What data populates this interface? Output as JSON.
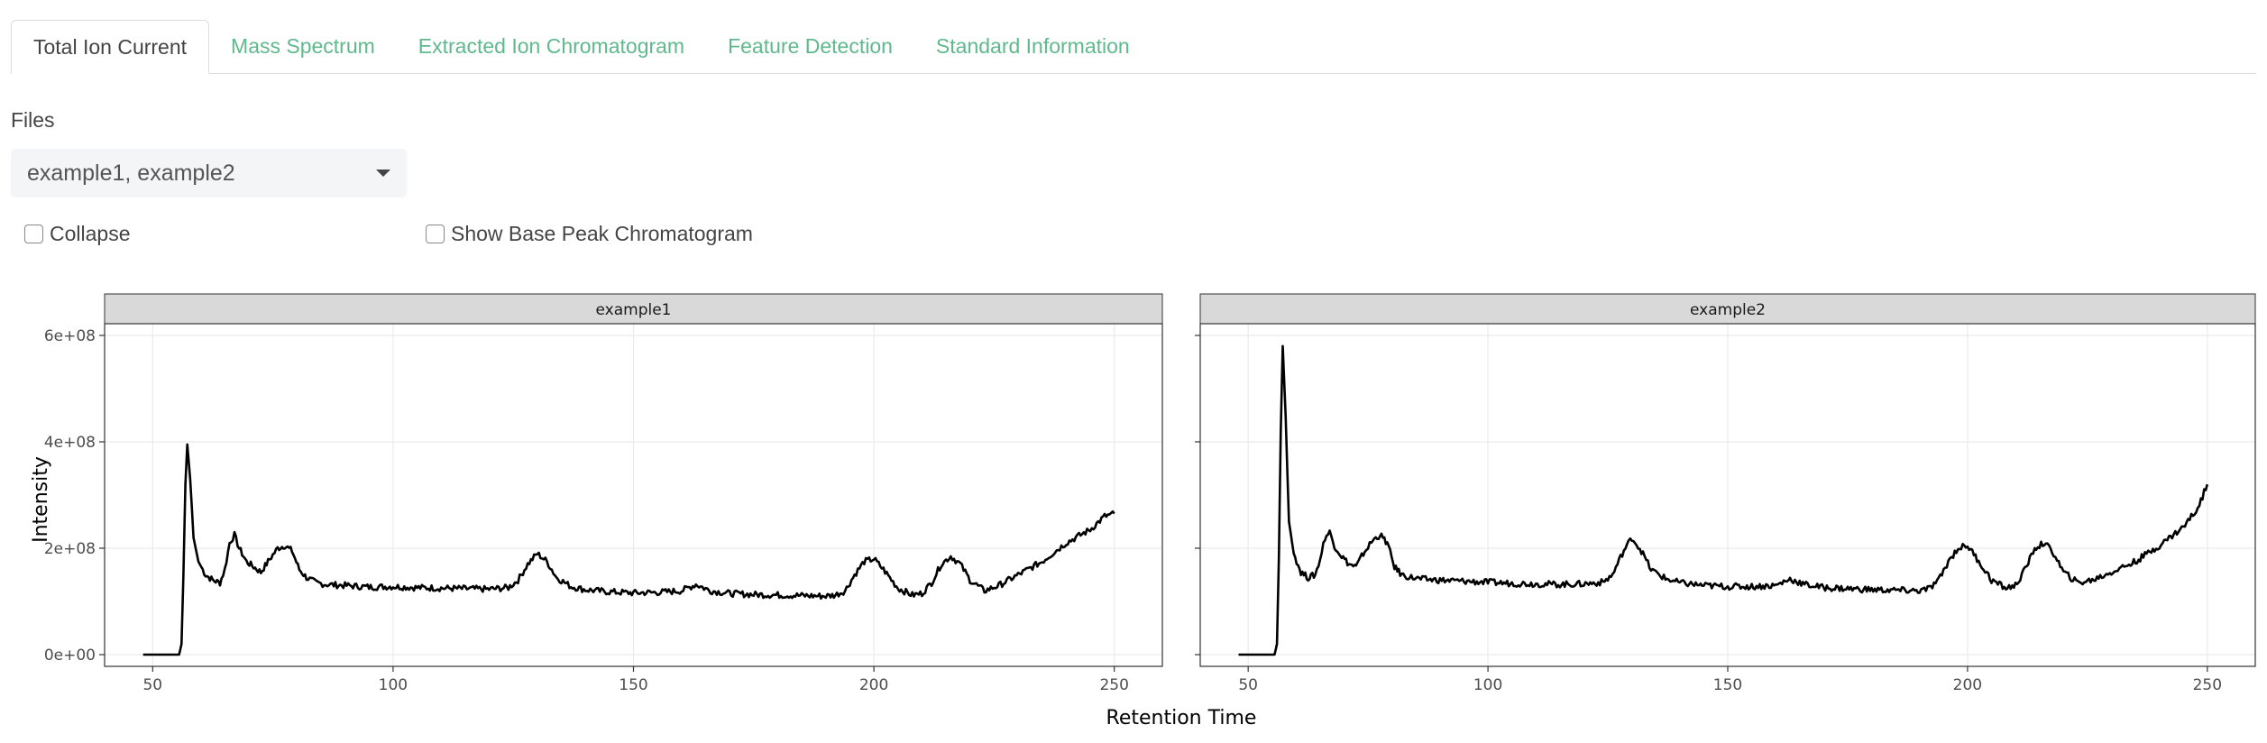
{
  "tabs": [
    {
      "label": "Total Ion Current",
      "active": true
    },
    {
      "label": "Mass Spectrum",
      "active": false
    },
    {
      "label": "Extracted Ion Chromatogram",
      "active": false
    },
    {
      "label": "Feature Detection",
      "active": false
    },
    {
      "label": "Standard Information",
      "active": false
    }
  ],
  "files": {
    "label": "Files",
    "value": "example1, example2"
  },
  "options": {
    "collapse": "Collapse",
    "show_bpc": "Show Base Peak Chromatogram"
  },
  "colors": {
    "accent": "#5fb98d",
    "strip_fill": "#d9d9d9",
    "line": "#000000",
    "grid": "#ebebeb"
  },
  "chart_data": {
    "type": "line",
    "facet": "files",
    "xlabel": "Retention Time",
    "ylabel": "Intensity",
    "xlim": [
      40,
      260
    ],
    "ylim": [
      0,
      600000000
    ],
    "x_ticks": [
      50,
      100,
      150,
      200,
      250
    ],
    "y_ticks": [
      0,
      200000000,
      400000000,
      600000000
    ],
    "y_tick_labels": [
      "0e+00",
      "2e+08",
      "4e+08",
      "6e+08"
    ],
    "panels": [
      {
        "name": "example1",
        "x": [
          48,
          55.5,
          56,
          56.4,
          56.8,
          57.2,
          57.8,
          58.5,
          59.5,
          61,
          62.5,
          64,
          65,
          66,
          67,
          68,
          69.5,
          71,
          72.5,
          74,
          76,
          77.5,
          79,
          80.5,
          82,
          84,
          86,
          90,
          95,
          100,
          105,
          110,
          115,
          120,
          124,
          126,
          128,
          130,
          132,
          134,
          137,
          140,
          145,
          150,
          155,
          160,
          163,
          166,
          170,
          175,
          180,
          185,
          190,
          192,
          194,
          196,
          198,
          200,
          202,
          205,
          208,
          210,
          212,
          214,
          216,
          218,
          220,
          223,
          226,
          230,
          235,
          240,
          245,
          248,
          250
        ],
        "y": [
          0,
          0,
          20000000,
          150000000,
          320000000,
          395000000,
          330000000,
          220000000,
          175000000,
          150000000,
          140000000,
          135000000,
          160000000,
          210000000,
          225000000,
          200000000,
          175000000,
          165000000,
          155000000,
          175000000,
          200000000,
          205000000,
          195000000,
          160000000,
          145000000,
          135000000,
          132000000,
          130000000,
          127000000,
          128000000,
          126000000,
          125000000,
          124000000,
          123000000,
          126000000,
          140000000,
          170000000,
          190000000,
          175000000,
          145000000,
          128000000,
          122000000,
          118000000,
          116000000,
          117000000,
          120000000,
          132000000,
          120000000,
          115000000,
          113000000,
          112000000,
          111000000,
          110000000,
          112000000,
          120000000,
          150000000,
          175000000,
          180000000,
          160000000,
          125000000,
          112000000,
          115000000,
          135000000,
          170000000,
          185000000,
          170000000,
          140000000,
          120000000,
          130000000,
          150000000,
          175000000,
          210000000,
          235000000,
          260000000,
          265000000
        ]
      },
      {
        "name": "example2",
        "x": [
          48,
          55.5,
          56,
          56.4,
          56.8,
          57.2,
          57.8,
          58.5,
          59.5,
          61,
          62.5,
          64,
          65,
          66,
          67,
          68,
          69.5,
          71,
          72.5,
          74,
          76,
          77.5,
          79,
          80.5,
          82,
          84,
          86,
          90,
          95,
          100,
          105,
          110,
          115,
          120,
          124,
          126,
          128,
          130,
          132,
          134,
          137,
          140,
          145,
          150,
          155,
          160,
          163,
          166,
          170,
          175,
          180,
          185,
          190,
          192,
          194,
          196,
          198,
          200,
          202,
          205,
          208,
          210,
          212,
          214,
          216,
          218,
          220,
          223,
          226,
          230,
          235,
          240,
          245,
          248,
          250
        ],
        "y": [
          0,
          0,
          20000000,
          180000000,
          420000000,
          580000000,
          450000000,
          250000000,
          190000000,
          155000000,
          145000000,
          150000000,
          180000000,
          220000000,
          230000000,
          205000000,
          185000000,
          170000000,
          165000000,
          190000000,
          215000000,
          225000000,
          210000000,
          165000000,
          150000000,
          145000000,
          142000000,
          140000000,
          138000000,
          136000000,
          134000000,
          133000000,
          132000000,
          133000000,
          136000000,
          150000000,
          190000000,
          220000000,
          195000000,
          160000000,
          143000000,
          135000000,
          130000000,
          128000000,
          128000000,
          130000000,
          142000000,
          132000000,
          126000000,
          124000000,
          122000000,
          121000000,
          120000000,
          124000000,
          140000000,
          175000000,
          200000000,
          205000000,
          180000000,
          140000000,
          125000000,
          130000000,
          160000000,
          200000000,
          210000000,
          190000000,
          155000000,
          135000000,
          140000000,
          155000000,
          175000000,
          205000000,
          240000000,
          275000000,
          320000000
        ]
      }
    ]
  }
}
